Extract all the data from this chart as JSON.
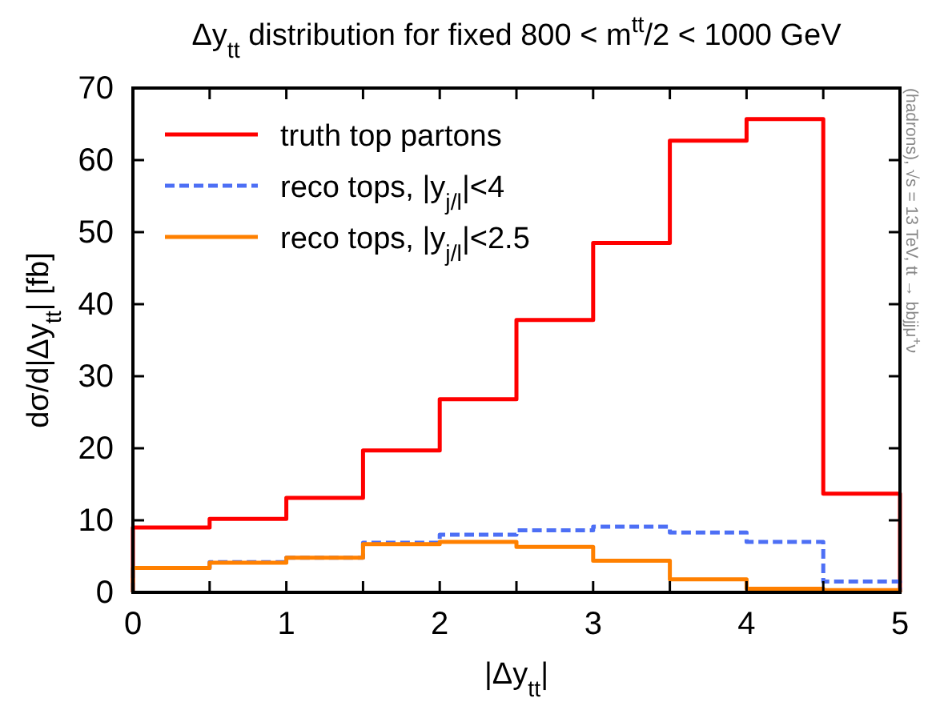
{
  "chart_data": {
    "type": "histogram",
    "title": "Δy$_{tt}$ distribution for fixed 800 < m$^{tt}$/2 < 1000 GeV",
    "xlabel": "|Δy$_{tt}$|",
    "ylabel": "dσ/d|Δy$_{tt}$| [fb]",
    "annotations": [
      "(hadrons), √s = 13 TeV, tt → bbjjμ$^{+}$ν"
    ],
    "bins": [
      0,
      0.5,
      1,
      1.5,
      2,
      2.5,
      3,
      3.5,
      4,
      4.5,
      5
    ],
    "series": [
      {
        "name": "truth top partons",
        "color": "#ff0000",
        "line_style": "solid",
        "values": [
          9.0,
          10.2,
          13.1,
          19.7,
          26.8,
          37.8,
          48.5,
          62.7,
          65.7,
          13.7
        ]
      },
      {
        "name": "reco tops, |y$_{j/l}$|<4",
        "color": "#4d6ff5",
        "line_style": "dashed",
        "values": [
          3.4,
          4.2,
          4.8,
          6.9,
          8.0,
          8.6,
          9.1,
          8.3,
          7.0,
          1.5
        ]
      },
      {
        "name": "reco tops, |y$_{j/l}$|<2.5",
        "color": "#ff8000",
        "line_style": "solid",
        "values": [
          3.4,
          4.1,
          4.8,
          6.7,
          7.0,
          6.3,
          4.4,
          1.8,
          0.5,
          0.3
        ]
      }
    ],
    "xlim": [
      0,
      5
    ],
    "ylim": [
      0,
      70
    ],
    "xticks": [
      0,
      {
        "value": 0.5,
        "label": null
      },
      1,
      {
        "value": 1.5,
        "label": null
      },
      2,
      {
        "value": 2.5,
        "label": null
      },
      3,
      {
        "value": 3.5,
        "label": null
      },
      4,
      {
        "value": 4.5,
        "label": null
      },
      5
    ],
    "yticks": [
      0,
      10,
      20,
      30,
      40,
      50,
      60,
      70
    ],
    "grid": false,
    "legend": "top left"
  }
}
